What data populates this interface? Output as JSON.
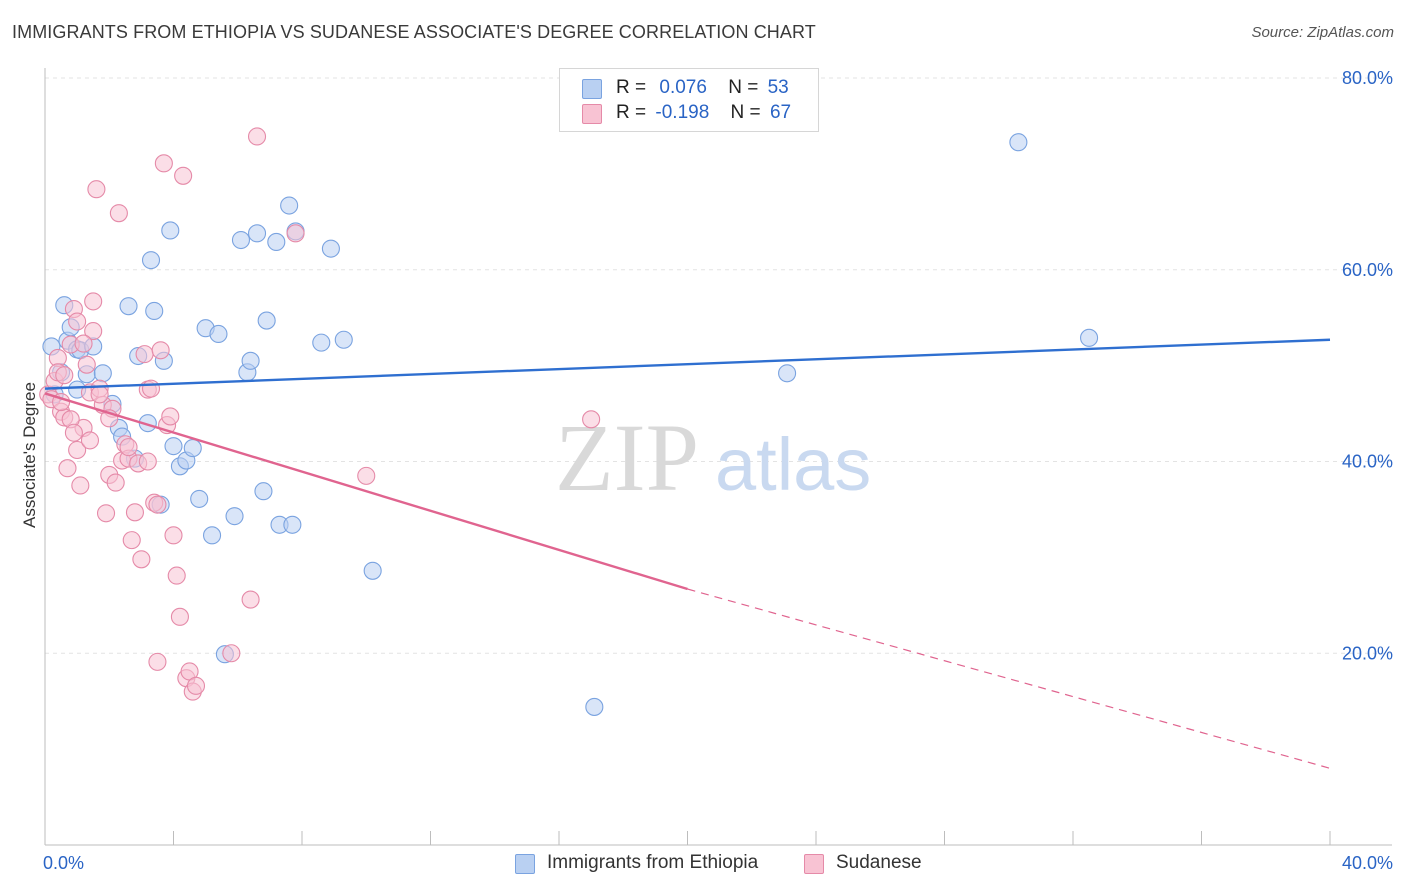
{
  "title": "IMMIGRANTS FROM ETHIOPIA VS SUDANESE ASSOCIATE'S DEGREE CORRELATION CHART",
  "source": "Source: ZipAtlas.com",
  "watermark": {
    "zip": "ZIP",
    "atlas": "atlas"
  },
  "legend": {
    "r_label": "R =",
    "n_label": "N =",
    "rows": [
      {
        "r": "0.076",
        "n": "53",
        "color": "#b9d0f2",
        "border": "#7aa3e0"
      },
      {
        "r": "-0.198",
        "n": "67",
        "color": "#f8c3d3",
        "border": "#e58aa8"
      }
    ]
  },
  "bottom_legend": [
    {
      "label": "Immigrants from Ethiopia",
      "color": "#b9d0f2",
      "border": "#7aa3e0"
    },
    {
      "label": "Sudanese",
      "color": "#f8c3d3",
      "border": "#e58aa8"
    }
  ],
  "chart_data": {
    "type": "scatter",
    "title": "IMMIGRANTS FROM ETHIOPIA VS SUDANESE ASSOCIATE'S DEGREE CORRELATION CHART",
    "xlabel": "",
    "ylabel": "Associate's Degree",
    "xlim": [
      0,
      40
    ],
    "ylim": [
      0,
      80
    ],
    "x_tick_labels": [
      "0.0%",
      "40.0%"
    ],
    "y_ticks": [
      20,
      40,
      60,
      80
    ],
    "y_tick_labels": [
      "20.0%",
      "40.0%",
      "60.0%",
      "80.0%"
    ],
    "grid": true,
    "legend_position": "top-center",
    "series": [
      {
        "name": "Immigrants from Ethiopia",
        "color": "#7aa3e0",
        "fill": "#b9d0f2",
        "trend": {
          "x": [
            0,
            40
          ],
          "y": [
            47.6,
            52.7
          ],
          "color": "#2f6fd0"
        },
        "points": [
          [
            0.2,
            52.0
          ],
          [
            0.5,
            49.3
          ],
          [
            0.6,
            56.3
          ],
          [
            0.7,
            52.6
          ],
          [
            0.8,
            54.0
          ],
          [
            1.0,
            51.7
          ],
          [
            1.1,
            51.6
          ],
          [
            1.3,
            49.1
          ],
          [
            1.5,
            52.0
          ],
          [
            1.8,
            49.2
          ],
          [
            2.1,
            46.0
          ],
          [
            2.3,
            43.5
          ],
          [
            2.4,
            42.6
          ],
          [
            2.6,
            56.2
          ],
          [
            2.8,
            40.3
          ],
          [
            2.9,
            51.0
          ],
          [
            3.2,
            44.0
          ],
          [
            3.3,
            61.0
          ],
          [
            3.4,
            55.7
          ],
          [
            3.6,
            35.5
          ],
          [
            3.7,
            50.5
          ],
          [
            3.9,
            64.1
          ],
          [
            4.0,
            41.6
          ],
          [
            4.2,
            39.5
          ],
          [
            4.4,
            40.1
          ],
          [
            4.6,
            41.4
          ],
          [
            4.8,
            36.1
          ],
          [
            5.0,
            53.9
          ],
          [
            5.2,
            32.3
          ],
          [
            5.4,
            53.3
          ],
          [
            5.6,
            19.9
          ],
          [
            5.9,
            34.3
          ],
          [
            6.1,
            63.1
          ],
          [
            6.3,
            49.3
          ],
          [
            6.4,
            50.5
          ],
          [
            6.6,
            63.8
          ],
          [
            6.8,
            36.9
          ],
          [
            6.9,
            54.7
          ],
          [
            7.2,
            62.9
          ],
          [
            7.3,
            33.4
          ],
          [
            7.6,
            66.7
          ],
          [
            7.7,
            33.4
          ],
          [
            7.8,
            64.0
          ],
          [
            8.6,
            52.4
          ],
          [
            8.9,
            62.2
          ],
          [
            9.3,
            52.7
          ],
          [
            10.2,
            28.6
          ],
          [
            17.1,
            14.4
          ],
          [
            23.1,
            49.2
          ],
          [
            30.3,
            73.3
          ],
          [
            32.5,
            52.9
          ],
          [
            0.3,
            47.0
          ],
          [
            1.0,
            47.5
          ]
        ]
      },
      {
        "name": "Sudanese",
        "color": "#e58aa8",
        "fill": "#f8c3d3",
        "trend": {
          "x": [
            0,
            20
          ],
          "y": [
            47.1,
            26.7
          ],
          "color": "#e0648f",
          "dash_x": [
            20,
            40
          ],
          "dash_y": [
            26.7,
            8.0
          ]
        },
        "points": [
          [
            0.1,
            47.0
          ],
          [
            0.2,
            46.5
          ],
          [
            0.3,
            48.4
          ],
          [
            0.4,
            50.8
          ],
          [
            0.5,
            45.2
          ],
          [
            0.6,
            44.6
          ],
          [
            0.7,
            39.3
          ],
          [
            0.8,
            52.2
          ],
          [
            0.9,
            55.9
          ],
          [
            1.0,
            54.6
          ],
          [
            1.0,
            41.2
          ],
          [
            1.1,
            37.5
          ],
          [
            1.2,
            43.5
          ],
          [
            1.3,
            50.1
          ],
          [
            1.4,
            47.2
          ],
          [
            1.5,
            56.7
          ],
          [
            1.5,
            53.6
          ],
          [
            1.6,
            68.4
          ],
          [
            1.7,
            47.6
          ],
          [
            1.8,
            45.9
          ],
          [
            1.9,
            34.6
          ],
          [
            2.0,
            38.6
          ],
          [
            2.1,
            45.5
          ],
          [
            2.2,
            37.8
          ],
          [
            2.3,
            65.9
          ],
          [
            2.4,
            40.1
          ],
          [
            2.5,
            41.8
          ],
          [
            2.6,
            40.3
          ],
          [
            2.7,
            31.8
          ],
          [
            2.8,
            34.7
          ],
          [
            2.9,
            39.8
          ],
          [
            3.0,
            29.8
          ],
          [
            3.1,
            51.2
          ],
          [
            3.2,
            47.5
          ],
          [
            3.3,
            47.6
          ],
          [
            3.4,
            35.7
          ],
          [
            3.5,
            35.5
          ],
          [
            3.5,
            19.1
          ],
          [
            3.6,
            51.6
          ],
          [
            3.7,
            71.1
          ],
          [
            3.8,
            43.8
          ],
          [
            3.9,
            44.7
          ],
          [
            4.0,
            32.3
          ],
          [
            4.1,
            28.1
          ],
          [
            4.2,
            23.8
          ],
          [
            4.3,
            69.8
          ],
          [
            4.4,
            17.4
          ],
          [
            4.5,
            18.1
          ],
          [
            4.6,
            16.0
          ],
          [
            4.7,
            16.6
          ],
          [
            5.8,
            20.0
          ],
          [
            6.4,
            25.6
          ],
          [
            6.6,
            73.9
          ],
          [
            7.8,
            63.8
          ],
          [
            10.0,
            38.5
          ],
          [
            17.0,
            44.4
          ],
          [
            0.4,
            49.3
          ],
          [
            0.8,
            44.4
          ],
          [
            1.2,
            52.3
          ],
          [
            0.6,
            49.0
          ],
          [
            0.9,
            43.0
          ],
          [
            2.0,
            44.5
          ],
          [
            2.6,
            41.5
          ],
          [
            3.2,
            40.0
          ],
          [
            1.4,
            42.2
          ],
          [
            0.5,
            46.2
          ],
          [
            1.7,
            47.0
          ]
        ]
      }
    ]
  }
}
